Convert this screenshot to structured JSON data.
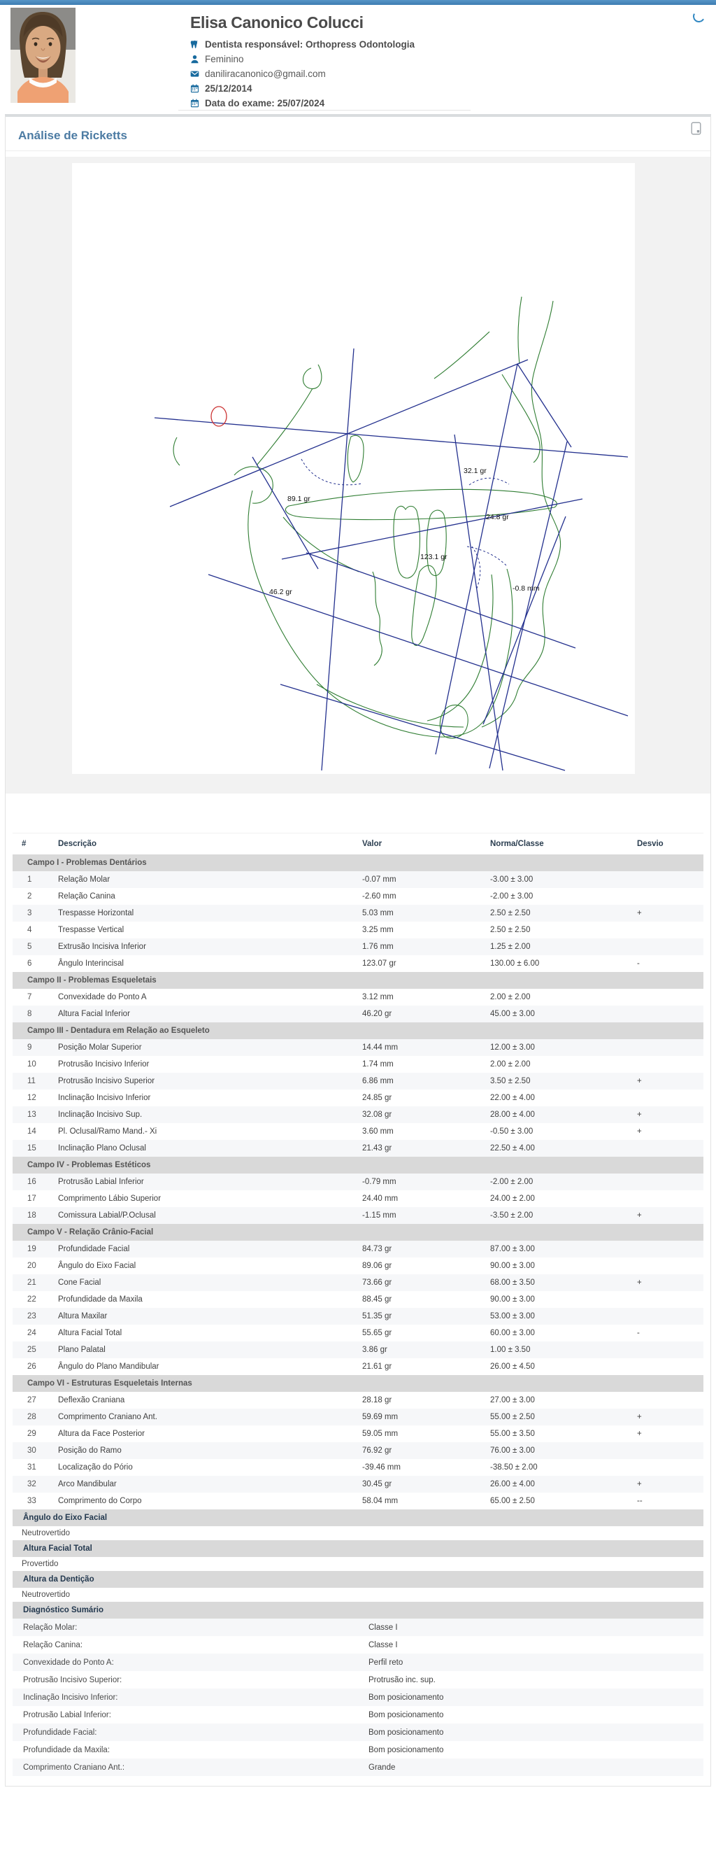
{
  "header": {
    "name": "Elisa Canonico Colucci",
    "fields": [
      {
        "icon": "tooth-icon",
        "text": "Dentista responsável: Orthopress Odontologia",
        "bold": true
      },
      {
        "icon": "person-icon",
        "text": "Feminino",
        "bold": false
      },
      {
        "icon": "mail-icon",
        "text": "daniliracanonico@gmail.com",
        "bold": false
      },
      {
        "icon": "calendar-icon",
        "text": "25/12/2014",
        "bold": true
      },
      {
        "icon": "calendar-icon",
        "text": "Data do exame: 25/07/2024",
        "bold": true
      }
    ]
  },
  "card": {
    "title": "Análise de Ricketts"
  },
  "diagram": {
    "labels": [
      "32.1 gr",
      "89.1 gr",
      "24.8 gr",
      "123.1 gr",
      "46.2 gr",
      "-0.8 mm"
    ]
  },
  "table": {
    "headers": [
      "#",
      "Descrição",
      "Valor",
      "Norma/Classe",
      "Desvio"
    ],
    "sections": [
      {
        "title": "Campo I - Problemas Dentários",
        "rows": [
          [
            "1",
            "Relação Molar",
            "-0.07 mm",
            "-3.00 ± 3.00",
            ""
          ],
          [
            "2",
            "Relação Canina",
            "-2.60 mm",
            "-2.00 ± 3.00",
            ""
          ],
          [
            "3",
            "Trespasse Horizontal",
            "5.03 mm",
            "2.50 ± 2.50",
            "+"
          ],
          [
            "4",
            "Trespasse Vertical",
            "3.25 mm",
            "2.50 ± 2.50",
            ""
          ],
          [
            "5",
            "Extrusão Incisiva Inferior",
            "1.76 mm",
            "1.25 ± 2.00",
            ""
          ],
          [
            "6",
            "Ângulo Interincisal",
            "123.07 gr",
            "130.00 ± 6.00",
            "-"
          ]
        ]
      },
      {
        "title": "Campo II - Problemas Esqueletais",
        "rows": [
          [
            "7",
            "Convexidade do Ponto A",
            "3.12 mm",
            "2.00 ± 2.00",
            ""
          ],
          [
            "8",
            "Altura Facial Inferior",
            "46.20 gr",
            "45.00 ± 3.00",
            ""
          ]
        ]
      },
      {
        "title": "Campo III - Dentadura em Relação ao Esqueleto",
        "rows": [
          [
            "9",
            "Posição Molar Superior",
            "14.44 mm",
            "12.00 ± 3.00",
            ""
          ],
          [
            "10",
            "Protrusão Incisivo Inferior",
            "1.74 mm",
            "2.00 ± 2.00",
            ""
          ],
          [
            "11",
            "Protrusão Incisivo Superior",
            "6.86 mm",
            "3.50 ± 2.50",
            "+"
          ],
          [
            "12",
            "Inclinação Incisivo Inferior",
            "24.85 gr",
            "22.00 ± 4.00",
            ""
          ],
          [
            "13",
            "Inclinação Incisivo Sup.",
            "32.08 gr",
            "28.00 ± 4.00",
            "+"
          ],
          [
            "14",
            "Pl. Oclusal/Ramo Mand.- Xi",
            "3.60 mm",
            "-0.50 ± 3.00",
            "+"
          ],
          [
            "15",
            "Inclinação Plano Oclusal",
            "21.43 gr",
            "22.50 ± 4.00",
            ""
          ]
        ]
      },
      {
        "title": "Campo IV - Problemas Estéticos",
        "rows": [
          [
            "16",
            "Protrusão Labial Inferior",
            "-0.79 mm",
            "-2.00 ± 2.00",
            ""
          ],
          [
            "17",
            "Comprimento Lábio Superior",
            "24.40 mm",
            "24.00 ± 2.00",
            ""
          ],
          [
            "18",
            "Comissura Labial/P.Oclusal",
            "-1.15 mm",
            "-3.50 ± 2.00",
            "+"
          ]
        ]
      },
      {
        "title": "Campo V - Relação Crânio-Facial",
        "rows": [
          [
            "19",
            "Profundidade Facial",
            "84.73 gr",
            "87.00 ± 3.00",
            ""
          ],
          [
            "20",
            "Ângulo do Eixo Facial",
            "89.06 gr",
            "90.00 ± 3.00",
            ""
          ],
          [
            "21",
            "Cone Facial",
            "73.66 gr",
            "68.00 ± 3.50",
            "+"
          ],
          [
            "22",
            "Profundidade da Maxila",
            "88.45 gr",
            "90.00 ± 3.00",
            ""
          ],
          [
            "23",
            "Altura Maxilar",
            "51.35 gr",
            "53.00 ± 3.00",
            ""
          ],
          [
            "24",
            "Altura Facial Total",
            "55.65 gr",
            "60.00 ± 3.00",
            "-"
          ],
          [
            "25",
            "Plano Palatal",
            "3.86 gr",
            "1.00 ± 3.50",
            ""
          ],
          [
            "26",
            "Ângulo do Plano Mandibular",
            "21.61 gr",
            "26.00 ± 4.50",
            ""
          ]
        ]
      },
      {
        "title": "Campo VI - Estruturas Esqueletais Internas",
        "rows": [
          [
            "27",
            "Deflexão Craniana",
            "28.18 gr",
            "27.00 ± 3.00",
            ""
          ],
          [
            "28",
            "Comprimento Craniano Ant.",
            "59.69 mm",
            "55.00 ± 2.50",
            "+"
          ],
          [
            "29",
            "Altura da Face Posterior",
            "59.05 mm",
            "55.00 ± 3.50",
            "+"
          ],
          [
            "30",
            "Posição do Ramo",
            "76.92 gr",
            "76.00 ± 3.00",
            ""
          ],
          [
            "31",
            "Localização do Pório",
            "-39.46 mm",
            "-38.50 ± 2.00",
            ""
          ],
          [
            "32",
            "Arco Mandibular",
            "30.45 gr",
            "26.00 ± 4.00",
            "+"
          ],
          [
            "33",
            "Comprimento do Corpo",
            "58.04 mm",
            "65.00 ± 2.50",
            "--"
          ]
        ]
      }
    ]
  },
  "interpretations": [
    {
      "title": "Ângulo do Eixo Facial",
      "value": "Neutrovertido"
    },
    {
      "title": "Altura Facial Total",
      "value": "Provertido"
    },
    {
      "title": "Altura da Dentição",
      "value": "Neutrovertido"
    }
  ],
  "diagnostics": {
    "title": "Diagnóstico Sumário",
    "rows": [
      {
        "label": "Relação Molar:",
        "value": "Classe I"
      },
      {
        "label": "Relação Canina:",
        "value": "Classe I"
      },
      {
        "label": "Convexidade do Ponto A:",
        "value": "Perfil reto"
      },
      {
        "label": "Protrusão Incisivo Superior:",
        "value": "Protrusão inc. sup."
      },
      {
        "label": "Inclinação Incisivo Inferior:",
        "value": "Bom posicionamento"
      },
      {
        "label": "Protrusão Labial Inferior:",
        "value": "Bom posicionamento"
      },
      {
        "label": "Profundidade Facial:",
        "value": "Bom posicionamento"
      },
      {
        "label": "Profundidade da Maxila:",
        "value": "Bom posicionamento"
      },
      {
        "label": "Comprimento Craniano Ant.:",
        "value": "Grande"
      }
    ]
  },
  "colors": {
    "accent_bar": "#3c7cb1",
    "icon_blue": "#176a9e",
    "title_blue": "#4c7ba3",
    "section_header_bg": "#d9d9d9",
    "tracing_green": "#2f7d32",
    "tracing_navy": "#23308e",
    "marker_red": "#cc3333"
  }
}
